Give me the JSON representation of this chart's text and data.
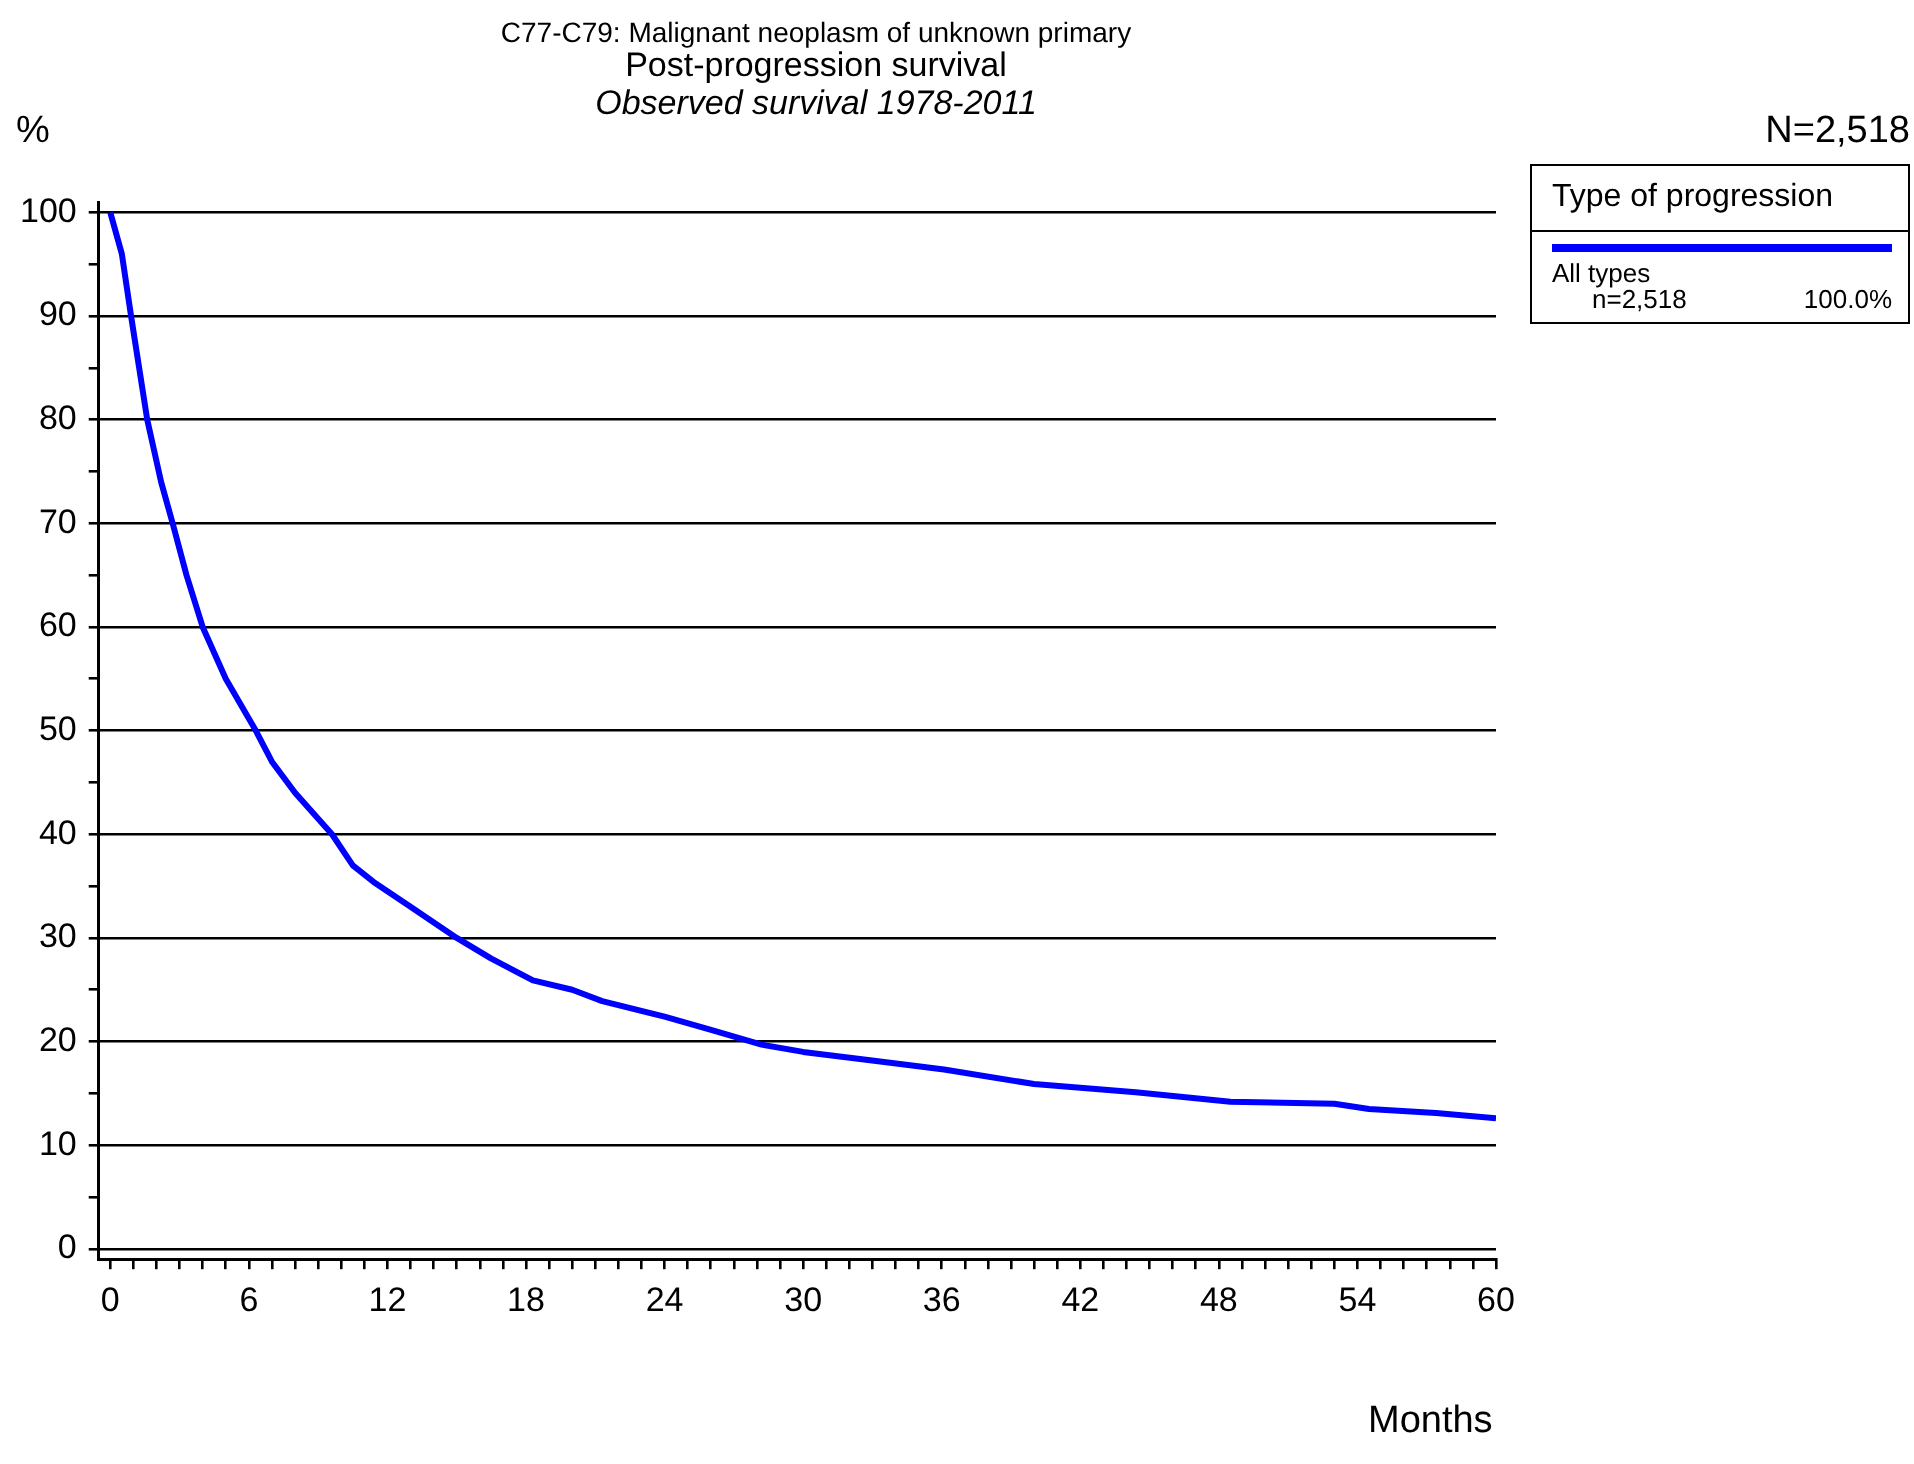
{
  "chart_data": {
    "type": "line",
    "title": "C77-C79: Malignant neoplasm of unknown primary",
    "subtitle": "Post-progression survival",
    "annotations": [
      "Observed survival 1978-2011",
      "N=2,518",
      "n=2,518",
      "100.0%"
    ],
    "xlabel": "Months",
    "ylabel": "%",
    "legend_title": "Type of progression",
    "legend": "top right",
    "grid": "y",
    "marker": "none",
    "line_style": "solid",
    "series": [
      {
        "name": "All types",
        "color": "#0000ff",
        "x": [
          0,
          0.5,
          0.9,
          1.6,
          2.2,
          2.7,
          3.3,
          4.0,
          5.0,
          6.3,
          7.0,
          8.0,
          9.6,
          10.5,
          11.4,
          13.0,
          15.0,
          16.5,
          18.3,
          20.0,
          21.3,
          24.0,
          25.9,
          28.2,
          30.0,
          32.9,
          36.1,
          40.0,
          44.4,
          48.5,
          53.0,
          54.5,
          57.4,
          60
        ],
        "values": [
          100,
          96,
          90,
          80,
          74,
          70,
          65,
          60,
          55,
          50,
          47,
          44,
          40,
          37,
          35.4,
          33,
          30,
          28,
          25.9,
          25,
          23.9,
          22.4,
          21.2,
          19.7,
          19,
          18.2,
          17.3,
          15.9,
          15.1,
          14.2,
          14.0,
          13.5,
          13.1,
          12.6
        ]
      }
    ],
    "xlim": [
      -0.5,
      60
    ],
    "ylim": [
      -1,
      101
    ],
    "xticks": [
      0,
      {
        "value": 1,
        "label": null
      },
      {
        "value": 2,
        "label": null
      },
      {
        "value": 3,
        "label": null
      },
      {
        "value": 4,
        "label": null
      },
      {
        "value": 5,
        "label": null
      },
      6,
      {
        "value": 7,
        "label": null
      },
      {
        "value": 8,
        "label": null
      },
      {
        "value": 9,
        "label": null
      },
      {
        "value": 10,
        "label": null
      },
      {
        "value": 11,
        "label": null
      },
      12,
      {
        "value": 13,
        "label": null
      },
      {
        "value": 14,
        "label": null
      },
      {
        "value": 15,
        "label": null
      },
      {
        "value": 16,
        "label": null
      },
      {
        "value": 17,
        "label": null
      },
      18,
      {
        "value": 19,
        "label": null
      },
      {
        "value": 20,
        "label": null
      },
      {
        "value": 21,
        "label": null
      },
      {
        "value": 22,
        "label": null
      },
      {
        "value": 23,
        "label": null
      },
      24,
      {
        "value": 25,
        "label": null
      },
      {
        "value": 26,
        "label": null
      },
      {
        "value": 27,
        "label": null
      },
      {
        "value": 28,
        "label": null
      },
      {
        "value": 29,
        "label": null
      },
      30,
      {
        "value": 31,
        "label": null
      },
      {
        "value": 32,
        "label": null
      },
      {
        "value": 33,
        "label": null
      },
      {
        "value": 34,
        "label": null
      },
      {
        "value": 35,
        "label": null
      },
      36,
      {
        "value": 37,
        "label": null
      },
      {
        "value": 38,
        "label": null
      },
      {
        "value": 39,
        "label": null
      },
      {
        "value": 40,
        "label": null
      },
      {
        "value": 41,
        "label": null
      },
      42,
      {
        "value": 43,
        "label": null
      },
      {
        "value": 44,
        "label": null
      },
      {
        "value": 45,
        "label": null
      },
      {
        "value": 46,
        "label": null
      },
      {
        "value": 47,
        "label": null
      },
      48,
      {
        "value": 49,
        "label": null
      },
      {
        "value": 50,
        "label": null
      },
      {
        "value": 51,
        "label": null
      },
      {
        "value": 52,
        "label": null
      },
      {
        "value": 53,
        "label": null
      },
      54,
      {
        "value": 55,
        "label": null
      },
      {
        "value": 56,
        "label": null
      },
      {
        "value": 57,
        "label": null
      },
      {
        "value": 58,
        "label": null
      },
      {
        "value": 59,
        "label": null
      },
      60
    ],
    "yticks": [
      0,
      {
        "value": 5,
        "label": null
      },
      10,
      {
        "value": 15,
        "label": null
      },
      20,
      {
        "value": 25,
        "label": null
      },
      30,
      {
        "value": 35,
        "label": null
      },
      40,
      {
        "value": 45,
        "label": null
      },
      50,
      {
        "value": 55,
        "label": null
      },
      60,
      {
        "value": 65,
        "label": null
      },
      70,
      {
        "value": 75,
        "label": null
      },
      80,
      {
        "value": 85,
        "label": null
      },
      90,
      {
        "value": 95,
        "label": null
      },
      100
    ]
  }
}
